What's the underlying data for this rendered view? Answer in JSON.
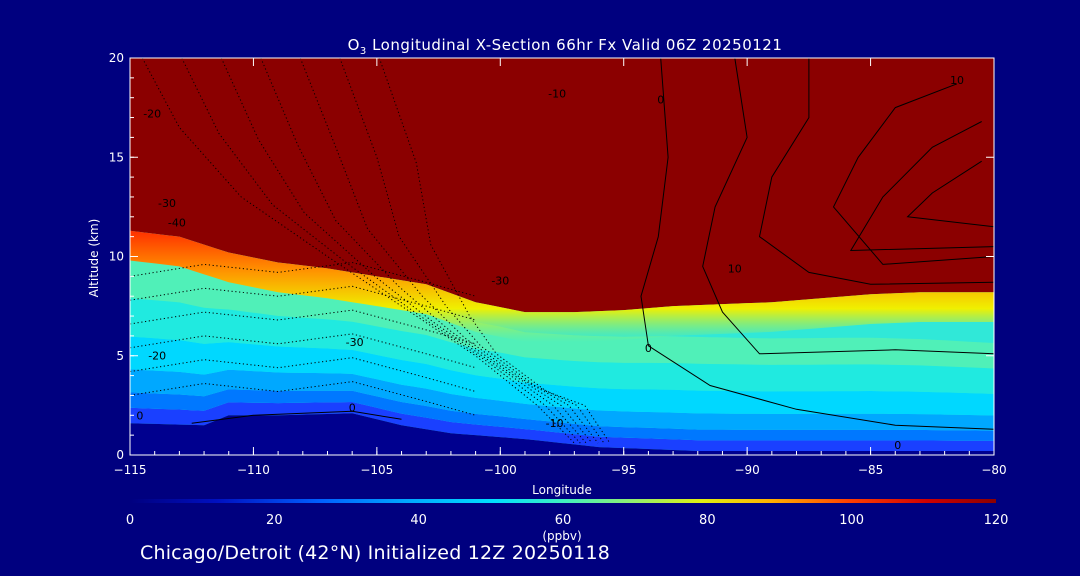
{
  "chart_data": {
    "type": "heatmap",
    "title_prefix": "O",
    "title_subscript": "3",
    "title_rest": " Longitudinal X-Section 66hr  Fx Valid 06Z 20250121",
    "xlabel": "Longitude",
    "ylabel": "Altitude (km)",
    "xlim": [
      -115,
      -80
    ],
    "ylim": [
      0,
      20
    ],
    "x_ticks": [
      -115,
      -110,
      -105,
      -100,
      -95,
      -90,
      -85,
      -80
    ],
    "x_tick_labels": [
      "−115",
      "−110",
      "−105",
      "−100",
      "−95",
      "−90",
      "−85",
      "−80"
    ],
    "y_ticks": [
      0,
      5,
      10,
      15,
      20
    ],
    "y_tick_labels": [
      "0",
      "5",
      "10",
      "15",
      "20"
    ],
    "colorbar": {
      "range": [
        0,
        120
      ],
      "ticks": [
        0,
        20,
        40,
        60,
        80,
        100,
        120
      ],
      "tick_labels": [
        "0",
        "20",
        "40",
        "60",
        "80",
        "100",
        "120"
      ],
      "unit_label": "(ppbv)",
      "colors": [
        "#0000a0",
        "#0040ff",
        "#0090ff",
        "#00d0ff",
        "#30f0d0",
        "#90f070",
        "#f0f000",
        "#ff9000",
        "#f02000",
        "#8b0000"
      ]
    },
    "tropopause_height_km": [
      {
        "lon": -115,
        "alt": 11.3
      },
      {
        "lon": -113,
        "alt": 11.0
      },
      {
        "lon": -111,
        "alt": 10.2
      },
      {
        "lon": -109,
        "alt": 9.7
      },
      {
        "lon": -107,
        "alt": 9.4
      },
      {
        "lon": -105,
        "alt": 9.0
      },
      {
        "lon": -103,
        "alt": 8.6
      },
      {
        "lon": -101,
        "alt": 7.7
      },
      {
        "lon": -99,
        "alt": 7.2
      },
      {
        "lon": -97,
        "alt": 7.2
      },
      {
        "lon": -95,
        "alt": 7.3
      },
      {
        "lon": -93,
        "alt": 7.5
      },
      {
        "lon": -91,
        "alt": 7.6
      },
      {
        "lon": -89,
        "alt": 7.7
      },
      {
        "lon": -87,
        "alt": 7.9
      },
      {
        "lon": -85,
        "alt": 8.1
      },
      {
        "lon": -83,
        "alt": 8.2
      },
      {
        "lon": -80,
        "alt": 8.2
      }
    ],
    "terrain_height_km": [
      {
        "lon": -115,
        "alt": 1.6
      },
      {
        "lon": -112,
        "alt": 1.5
      },
      {
        "lon": -111,
        "alt": 2.0
      },
      {
        "lon": -109,
        "alt": 2.0
      },
      {
        "lon": -106,
        "alt": 2.1
      },
      {
        "lon": -104,
        "alt": 1.5
      },
      {
        "lon": -102,
        "alt": 1.1
      },
      {
        "lon": -99,
        "alt": 0.8
      },
      {
        "lon": -96,
        "alt": 0.4
      },
      {
        "lon": -92,
        "alt": 0.2
      },
      {
        "lon": -88,
        "alt": 0.2
      },
      {
        "lon": -84,
        "alt": 0.2
      },
      {
        "lon": -80,
        "alt": 0.2
      }
    ],
    "contour_labels": [
      {
        "text": "-20",
        "lon": -114.1,
        "alt": 17.0
      },
      {
        "text": "-30",
        "lon": -113.5,
        "alt": 12.5
      },
      {
        "text": "-40",
        "lon": -113.1,
        "alt": 11.5
      },
      {
        "text": "-20",
        "lon": -113.9,
        "alt": 4.8
      },
      {
        "text": "-30",
        "lon": -100.0,
        "alt": 8.6
      },
      {
        "text": "-30",
        "lon": -105.9,
        "alt": 5.5
      },
      {
        "text": "-10",
        "lon": -97.7,
        "alt": 18.0
      },
      {
        "text": "0",
        "lon": -93.5,
        "alt": 17.7
      },
      {
        "text": "10",
        "lon": -81.5,
        "alt": 18.7
      },
      {
        "text": "10",
        "lon": -90.5,
        "alt": 9.2
      },
      {
        "text": "0",
        "lon": -94.0,
        "alt": 5.2
      },
      {
        "text": "0",
        "lon": -106.0,
        "alt": 2.2
      },
      {
        "text": "-10",
        "lon": -97.8,
        "alt": 1.4
      },
      {
        "text": "0",
        "lon": -114.6,
        "alt": 1.8
      },
      {
        "text": "0",
        "lon": -83.9,
        "alt": 0.3
      }
    ]
  },
  "footer": {
    "text": "Chicago/Detroit (42°N) Initialized 12Z 20250118"
  }
}
